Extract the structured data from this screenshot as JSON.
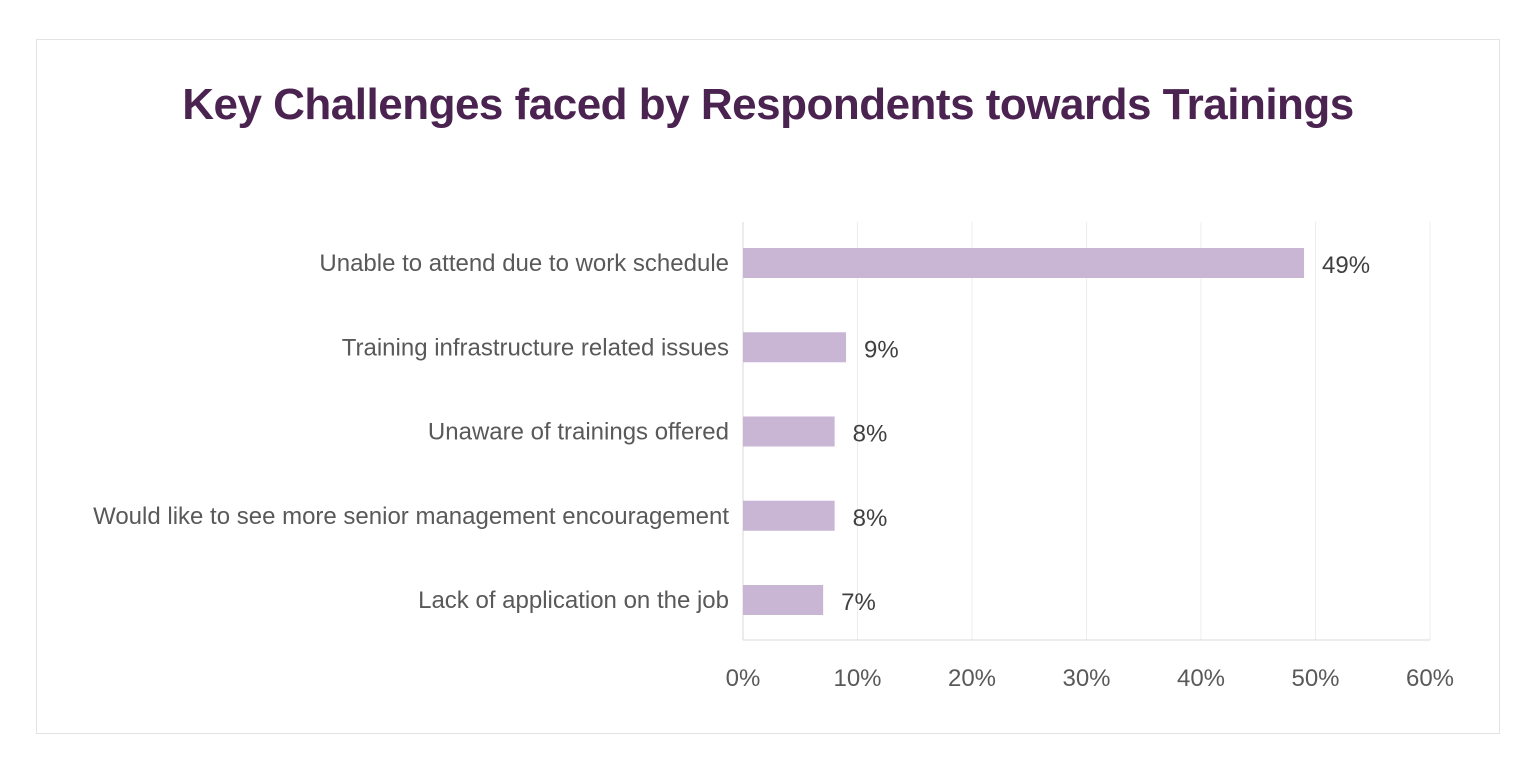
{
  "chart_data": {
    "type": "bar",
    "orientation": "horizontal",
    "title": "Key Challenges faced by Respondents towards Trainings",
    "categories": [
      "Unable to attend due to work schedule",
      "Training infrastructure related issues",
      "Unaware of trainings offered",
      "Would like to see more senior management encouragement",
      "Lack of application on the job"
    ],
    "values": [
      49,
      9,
      8,
      8,
      7
    ],
    "value_labels": [
      "49%",
      "9%",
      "8%",
      "8%",
      "7%"
    ],
    "xlim": [
      0,
      60
    ],
    "x_ticks": [
      0,
      10,
      20,
      30,
      40,
      50,
      60
    ],
    "x_tick_labels": [
      "0%",
      "10%",
      "20%",
      "30%",
      "40%",
      "50%",
      "60%"
    ],
    "grid": true,
    "legend": "none",
    "colors": {
      "bar": "#c8b6d4",
      "title": "#4b2350",
      "grid": "#ececec",
      "axis": "#d9d9d9"
    }
  }
}
